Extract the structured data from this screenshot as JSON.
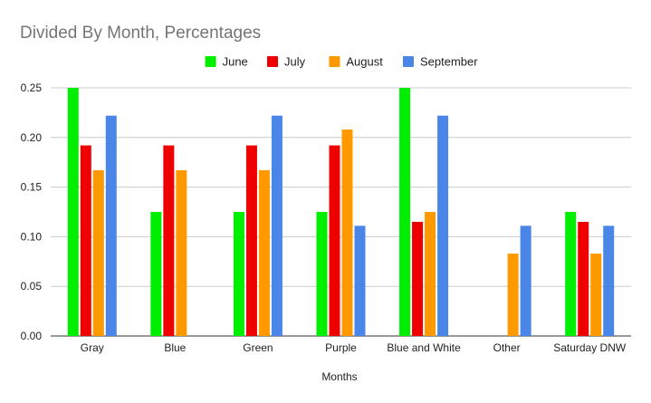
{
  "chart_data": {
    "type": "bar",
    "title": "Divided By Month, Percentages",
    "xlabel": "Months",
    "ylabel": "",
    "ylim": [
      0,
      0.25
    ],
    "yticks": [
      "0.00",
      "0.05",
      "0.10",
      "0.15",
      "0.20",
      "0.25"
    ],
    "yticks_values": [
      0,
      0.05,
      0.1,
      0.15,
      0.2,
      0.25
    ],
    "legend_position": "top",
    "grid": true,
    "categories": [
      "Gray",
      "Blue",
      "Green",
      "Purple",
      "Blue and White",
      "Other",
      "Saturday DNW"
    ],
    "series": [
      {
        "name": "June",
        "color": "#00ee00",
        "values": [
          0.25,
          0.125,
          0.125,
          0.125,
          0.25,
          0,
          0.125
        ]
      },
      {
        "name": "July",
        "color": "#ee0000",
        "values": [
          0.192,
          0.192,
          0.192,
          0.192,
          0.115,
          0,
          0.115
        ]
      },
      {
        "name": "August",
        "color": "#ff9900",
        "values": [
          0.167,
          0.167,
          0.167,
          0.208,
          0.125,
          0.083,
          0.083
        ]
      },
      {
        "name": "September",
        "color": "#4a86e8",
        "values": [
          0.222,
          0,
          0.222,
          0.111,
          0.222,
          0.111,
          0.111
        ]
      }
    ]
  }
}
